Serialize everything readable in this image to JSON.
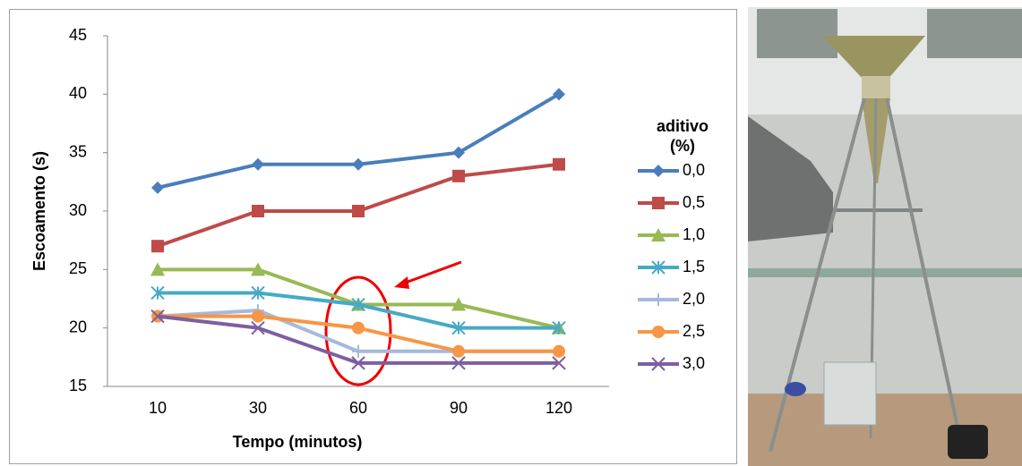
{
  "chart_data": {
    "type": "line",
    "categories": [
      "10",
      "30",
      "60",
      "90",
      "120"
    ],
    "x_label": "Tempo (minutos)",
    "y_label": "Escoamento (s)",
    "legend_title": "aditivo (%)",
    "legend": "right",
    "ylim": [
      15,
      45
    ],
    "yticks": [
      15,
      20,
      25,
      30,
      35,
      40,
      45
    ],
    "grid": false,
    "series": [
      {
        "name": "0,0",
        "color": "#4a7ebb",
        "marker": "diamond",
        "values": [
          32,
          34,
          34,
          35,
          40
        ]
      },
      {
        "name": "0,5",
        "color": "#be4b48",
        "marker": "square",
        "values": [
          27,
          30,
          30,
          33,
          34
        ]
      },
      {
        "name": "1,0",
        "color": "#98b954",
        "marker": "triangle",
        "values": [
          25,
          25,
          22,
          22,
          20
        ]
      },
      {
        "name": "1,5",
        "color": "#46aac5",
        "marker": "star",
        "values": [
          23,
          23,
          22,
          20,
          20
        ]
      },
      {
        "name": "2,0",
        "color": "#a5b9dd",
        "marker": "plus",
        "values": [
          21,
          21.5,
          18,
          18,
          18
        ]
      },
      {
        "name": "2,5",
        "color": "#f79646",
        "marker": "circle",
        "values": [
          21,
          21,
          20,
          18,
          18
        ]
      },
      {
        "name": "3,0",
        "color": "#7d5fa0",
        "marker": "x",
        "values": [
          21,
          20,
          17,
          17,
          17
        ]
      }
    ]
  }
}
